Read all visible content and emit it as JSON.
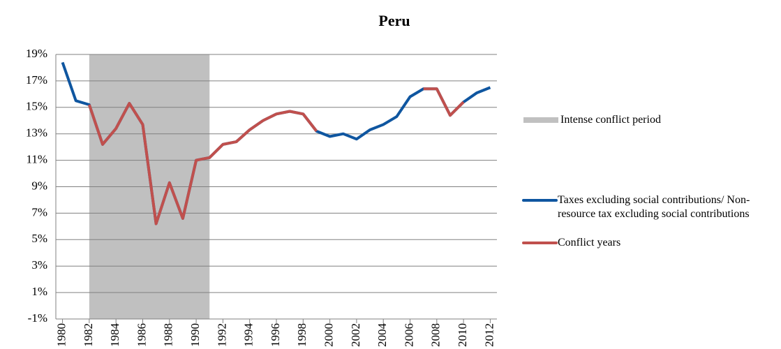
{
  "chart_data": {
    "type": "line",
    "title": "Peru",
    "x": [
      1980,
      1981,
      1982,
      1983,
      1984,
      1985,
      1986,
      1987,
      1988,
      1989,
      1990,
      1991,
      1992,
      1993,
      1994,
      1995,
      1996,
      1997,
      1998,
      1999,
      2000,
      2001,
      2002,
      2003,
      2004,
      2005,
      2006,
      2007,
      2008,
      2009,
      2010,
      2011,
      2012
    ],
    "xlim": [
      1979.5,
      2012.5
    ],
    "xticks": [
      1980,
      1982,
      1984,
      1986,
      1988,
      1990,
      1992,
      1994,
      1996,
      1998,
      2000,
      2002,
      2004,
      2006,
      2008,
      2010,
      2012
    ],
    "ylim": [
      -1,
      19
    ],
    "yticks": [
      {
        "value": -1,
        "label": "-1%"
      },
      {
        "value": 1,
        "label": "1%"
      },
      {
        "value": 3,
        "label": "3%"
      },
      {
        "value": 5,
        "label": "5%"
      },
      {
        "value": 7,
        "label": "7%"
      },
      {
        "value": 9,
        "label": "9%"
      },
      {
        "value": 11,
        "label": "11%"
      },
      {
        "value": 13,
        "label": "13%"
      },
      {
        "value": 15,
        "label": "15%"
      },
      {
        "value": 17,
        "label": "17%"
      },
      {
        "value": 19,
        "label": "19%"
      }
    ],
    "grid": true,
    "shaded": {
      "name": "Intense conflict period",
      "color": "#c0c0c0",
      "x": [
        1982,
        1991
      ]
    },
    "series": [
      {
        "name": "Taxes excluding social contributions/ Non-resource tax excluding social contributions",
        "color": "#0f56a0",
        "values": [
          18.4,
          15.5,
          15.2,
          12.2,
          13.4,
          15.3,
          13.7,
          6.2,
          9.3,
          6.6,
          11.0,
          11.2,
          12.2,
          12.4,
          13.3,
          14.0,
          14.5,
          14.7,
          14.5,
          13.2,
          12.8,
          13.0,
          12.6,
          13.3,
          13.7,
          14.3,
          15.8,
          16.4,
          16.4,
          14.4,
          15.4,
          16.1,
          16.5
        ]
      },
      {
        "name": "Conflict years",
        "color": "#c0504d",
        "values": [
          null,
          null,
          15.2,
          12.2,
          13.4,
          15.3,
          13.7,
          6.2,
          9.3,
          6.6,
          11.0,
          11.2,
          12.2,
          12.4,
          13.3,
          14.0,
          14.5,
          14.7,
          14.5,
          13.2,
          null,
          null,
          null,
          null,
          null,
          null,
          null,
          16.4,
          16.4,
          14.4,
          15.4,
          null,
          null
        ]
      }
    ]
  }
}
